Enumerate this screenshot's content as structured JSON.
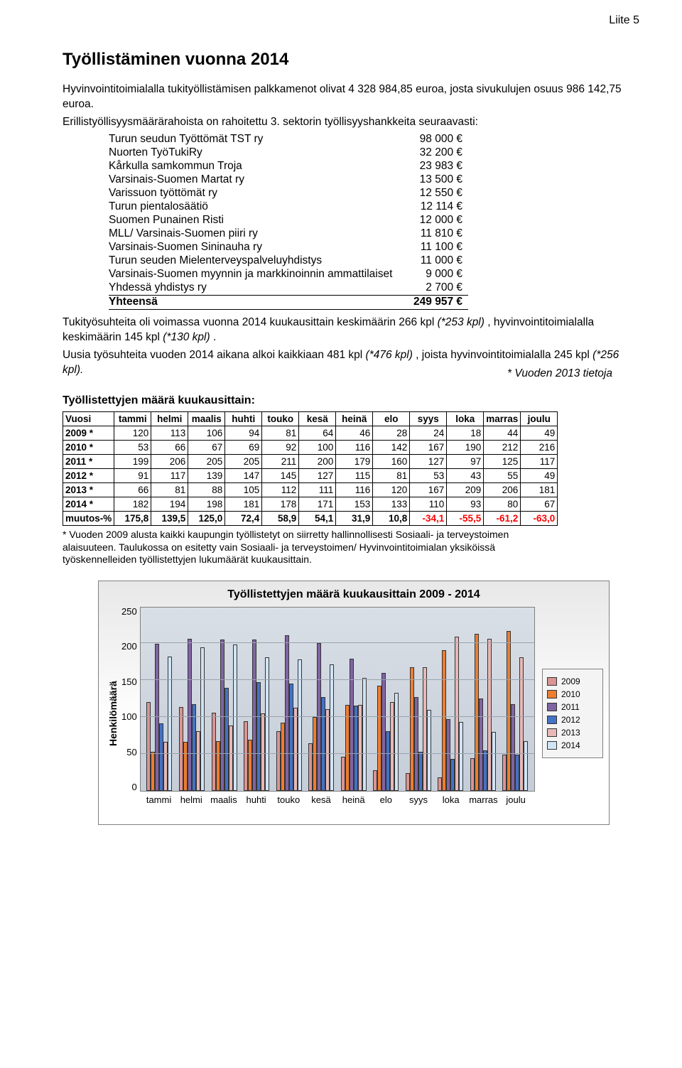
{
  "header_right": "Liite 5",
  "title": "Työllistäminen vuonna 2014",
  "p1": "Hyvinvointitoimialalla tukityöllistämisen palkkamenot olivat 4 328 984,85 euroa, josta sivukulujen osuus 986 142,75 euroa.",
  "p2": "Erillistyöllisyysmäärärahoista on rahoitettu 3. sektorin työllisyyshankkeita seuraavasti:",
  "list": [
    {
      "label": "Turun seudun Työttömät TST ry",
      "val": "98 000 €"
    },
    {
      "label": "Nuorten TyöTukiRy",
      "val": "32 200 €"
    },
    {
      "label": "Kårkulla samkommun Troja",
      "val": "23 983 €"
    },
    {
      "label": "Varsinais-Suomen Martat ry",
      "val": "13 500 €"
    },
    {
      "label": "Varissuon työttömät ry",
      "val": "12 550 €"
    },
    {
      "label": "Turun pientalosäätiö",
      "val": "12 114 €"
    },
    {
      "label": "Suomen Punainen Risti",
      "val": "12 000 €"
    },
    {
      "label": "MLL/ Varsinais-Suomen piiri ry",
      "val": "11 810 €"
    },
    {
      "label": "Varsinais-Suomen Sininauha ry",
      "val": "11 100 €"
    },
    {
      "label": "Turun seuden Mielenterveyspalveluyhdistys",
      "val": "11 000 €"
    },
    {
      "label": "Varsinais-Suomen myynnin ja markkinoinnin ammattilaiset",
      "val": "9 000 €"
    },
    {
      "label": "Yhdessä yhdistys ry",
      "val": "2 700 €"
    }
  ],
  "total_label": "Yhteensä",
  "total_val": "249 957 €",
  "p3a": "Tukityösuhteita oli voimassa vuonna 2014 kuukausittain keskimäärin 266 kpl ",
  "p3a_i": "(*253 kpl)",
  "p3a_end": " , hyvinvointitoimialalla keskimäärin 145 kpl ",
  "p3a_i2": "(*130 kpl)",
  "p3a_end2": " .",
  "p3b": "Uusia työsuhteita vuoden 2014 aikana alkoi kaikkiaan 481 kpl ",
  "p3b_i": "(*476 kpl)",
  "p3b_mid": " , joista hyvinvointitoimialalla 245 kpl ",
  "p3b_i2": "(*256 kpl).",
  "right_note": "* Vuoden 2013 tietoja",
  "sub_heading": "Työllistettyjen määrä kuukausittain:",
  "months": [
    "tammi",
    "helmi",
    "maalis",
    "huhti",
    "touko",
    "kesä",
    "heinä",
    "elo",
    "syys",
    "loka",
    "marras",
    "joulu"
  ],
  "months_head": "Vuosi",
  "rows": [
    {
      "label": "2009 *",
      "vals": [
        120,
        113,
        106,
        94,
        81,
        64,
        46,
        28,
        24,
        18,
        44,
        49
      ]
    },
    {
      "label": "2010 *",
      "vals": [
        53,
        66,
        67,
        69,
        92,
        100,
        116,
        142,
        167,
        190,
        212,
        216
      ]
    },
    {
      "label": "2011 *",
      "vals": [
        199,
        206,
        205,
        205,
        211,
        200,
        179,
        160,
        127,
        97,
        125,
        117
      ]
    },
    {
      "label": "2012 *",
      "vals": [
        91,
        117,
        139,
        147,
        145,
        127,
        115,
        81,
        53,
        43,
        55,
        49
      ]
    },
    {
      "label": "2013 *",
      "vals": [
        66,
        81,
        88,
        105,
        112,
        111,
        116,
        120,
        167,
        209,
        206,
        181
      ]
    },
    {
      "label": "2014 *",
      "vals": [
        182,
        194,
        198,
        181,
        178,
        171,
        153,
        133,
        110,
        93,
        80,
        67
      ]
    }
  ],
  "change_label": "muutos-%",
  "change_vals": [
    "175,8",
    "139,5",
    "125,0",
    "72,4",
    "58,9",
    "54,1",
    "31,9",
    "10,8",
    "-34,1",
    "-55,5",
    "-61,2",
    "-63,0"
  ],
  "footnote1": "* Vuoden 2009 alusta kaikki kaupungin työllistetyt on siirretty hallinnollisesti Sosiaali- ja terveystoimen",
  "footnote2": "  alaisuuteen. Taulukossa on esitetty vain Sosiaali- ja terveystoimen/ Hyvinvointitoimialan yksiköissä",
  "footnote3": "  työskennelleiden työllistettyjen lukumäärät kuukausittain.",
  "chart": {
    "title": "Työllistettyjen määrä kuukausittain 2009 - 2014",
    "ylabel": "Henkilömäärä",
    "ymax": 250,
    "yticks": [
      250,
      200,
      150,
      100,
      50,
      0
    ],
    "series_colors": {
      "2009": "#d99593",
      "2010": "#ed7d31",
      "2011": "#8064a2",
      "2012": "#4472c4",
      "2013": "#e6b8b7",
      "2014": "#d0e4f5"
    },
    "legend_years": [
      "2009",
      "2010",
      "2011",
      "2012",
      "2013",
      "2014"
    ],
    "categories": [
      "tammi",
      "helmi",
      "maalis",
      "huhti",
      "touko",
      "kesä",
      "heinä",
      "elo",
      "syys",
      "loka",
      "marras",
      "joulu"
    ],
    "data": {
      "2009": [
        120,
        113,
        106,
        94,
        81,
        64,
        46,
        28,
        24,
        18,
        44,
        49
      ],
      "2010": [
        53,
        66,
        67,
        69,
        92,
        100,
        116,
        142,
        167,
        190,
        212,
        216
      ],
      "2011": [
        199,
        206,
        205,
        205,
        211,
        200,
        179,
        160,
        127,
        97,
        125,
        117
      ],
      "2012": [
        91,
        117,
        139,
        147,
        145,
        127,
        115,
        81,
        53,
        43,
        55,
        49
      ],
      "2013": [
        66,
        81,
        88,
        105,
        112,
        111,
        116,
        120,
        167,
        209,
        206,
        181
      ],
      "2014": [
        182,
        194,
        198,
        181,
        178,
        171,
        153,
        133,
        110,
        93,
        80,
        67
      ]
    }
  }
}
